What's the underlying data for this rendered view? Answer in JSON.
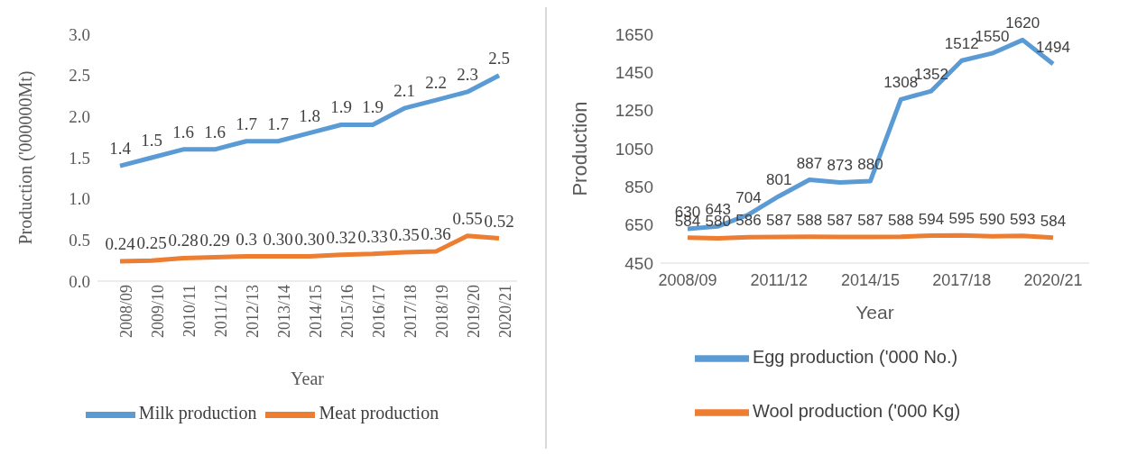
{
  "chart_data": [
    {
      "type": "line",
      "xlabel": "Year",
      "ylabel": "Production ('000000Mt)",
      "categories": [
        "2008/09",
        "2009/10",
        "2010/11",
        "2011/12",
        "2012/13",
        "2013/14",
        "2014/15",
        "2015/16",
        "2016/17",
        "2017/18",
        "2018/19",
        "2019/20",
        "2020/21"
      ],
      "series": [
        {
          "name": "Milk production",
          "color": "#5b9bd5",
          "values": [
            1.4,
            1.5,
            1.6,
            1.6,
            1.7,
            1.7,
            1.8,
            1.9,
            1.9,
            2.1,
            2.2,
            2.3,
            2.5
          ],
          "value_labels": [
            "1.4",
            "1.5",
            "1.6",
            "1.6",
            "1.7",
            "1.7",
            "1.8",
            "1.9",
            "1.9",
            "2.1",
            "2.2",
            "2.3",
            "2.5"
          ]
        },
        {
          "name": "Meat production",
          "color": "#ed7d31",
          "values": [
            0.24,
            0.25,
            0.28,
            0.29,
            0.3,
            0.3,
            0.3,
            0.32,
            0.33,
            0.35,
            0.36,
            0.55,
            0.52
          ],
          "value_labels": [
            "0.24",
            "0.25",
            "0.28",
            "0.29",
            "0.3",
            "0.30",
            "0.30",
            "0.32",
            "0.33",
            "0.35",
            "0.36",
            "0.55",
            "0.52"
          ]
        }
      ],
      "ylim": [
        0,
        3
      ],
      "yticks": [
        {
          "value": 0,
          "label": "0.0"
        },
        {
          "value": 0.5,
          "label": "0.5"
        },
        {
          "value": 1,
          "label": "1.0"
        },
        {
          "value": 1.5,
          "label": "1.5"
        },
        {
          "value": 2,
          "label": "2.0"
        },
        {
          "value": 2.5,
          "label": "2.5"
        },
        {
          "value": 3,
          "label": "3.0"
        }
      ],
      "grid": false,
      "legend": "bottom",
      "marker": "none"
    },
    {
      "type": "line",
      "xlabel": "Year",
      "ylabel": "Production",
      "categories": [
        "2008/09",
        null,
        null,
        "2011/12",
        null,
        null,
        "2014/15",
        null,
        null,
        "2017/18",
        null,
        null,
        "2020/21"
      ],
      "series": [
        {
          "name": "Egg production ('000 No.)",
          "color": "#5b9bd5",
          "values": [
            630,
            643,
            704,
            801,
            887,
            873,
            880,
            1308,
            1352,
            1512,
            1550,
            1620,
            1494
          ]
        },
        {
          "name": "Wool production ('000 Kg)",
          "color": "#ed7d31",
          "values": [
            584,
            580,
            586,
            587,
            588,
            587,
            587,
            588,
            594,
            595,
            590,
            593,
            584
          ]
        }
      ],
      "ylim": [
        450,
        1650
      ],
      "yticks": [
        450,
        650,
        850,
        1050,
        1250,
        1450,
        1650
      ],
      "grid": false,
      "legend": "bottom",
      "marker": "none",
      "data_labels": true
    }
  ]
}
